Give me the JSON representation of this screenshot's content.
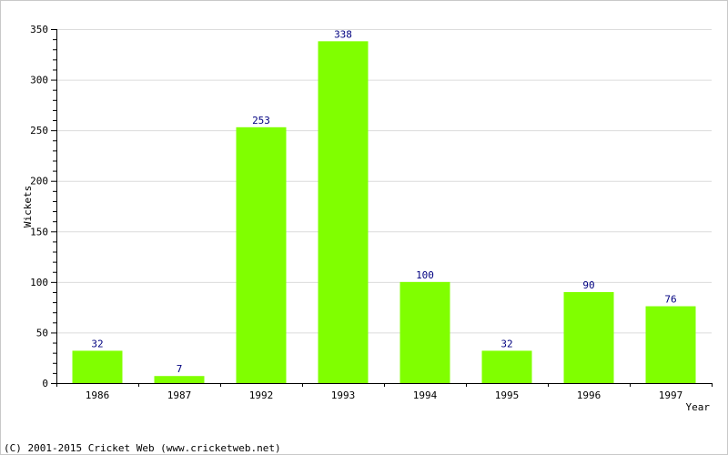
{
  "chart_data": {
    "type": "bar",
    "categories": [
      "1986",
      "1987",
      "1992",
      "1993",
      "1994",
      "1995",
      "1996",
      "1997"
    ],
    "values": [
      32,
      7,
      253,
      338,
      100,
      32,
      90,
      76
    ],
    "title": "",
    "xlabel": "Year",
    "ylabel": "Wickets",
    "ylim": [
      0,
      350
    ],
    "yticks": [
      0,
      50,
      100,
      150,
      200,
      250,
      300,
      350
    ],
    "grid": true,
    "data_labels": true,
    "bar_color": "#80ff00",
    "label_color": "#000080",
    "grid_color": "#dcdcdc"
  },
  "footer": {
    "copyright": "(C) 2001-2015 Cricket Web (www.cricketweb.net)"
  }
}
